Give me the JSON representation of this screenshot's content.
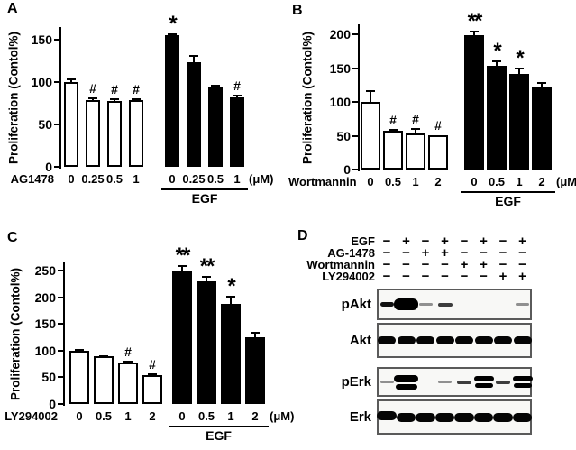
{
  "panel_letters": {
    "A": "A",
    "B": "B",
    "C": "C",
    "D": "D"
  },
  "accent_colors": {
    "bar_fill_dark": "#000000",
    "bar_fill_light": "#ffffff",
    "blot_border": "#5a5a5a"
  },
  "chart_data": [
    {
      "panel": "A",
      "type": "bar",
      "title": "",
      "ylabel": "Proliferation (Contol%)",
      "xlabel": "",
      "drug_label": "AG1478",
      "unit_label": "(μM)",
      "group2_underline_label": "EGF",
      "categories": [
        "0",
        "0.25",
        "0.5",
        "1"
      ],
      "yticks": [
        0,
        50,
        100,
        150
      ],
      "ylim": [
        0,
        165
      ],
      "grid": false,
      "legend": "none",
      "series": [
        {
          "name": "AG1478 alone",
          "fill": "white",
          "values": [
            100,
            79,
            78,
            79
          ],
          "errors": [
            3,
            2,
            2,
            1
          ],
          "annotations": [
            "",
            "#",
            "#",
            "#"
          ]
        },
        {
          "name": "AG1478 + EGF",
          "fill": "black",
          "values": [
            155,
            123,
            95,
            82
          ],
          "errors": [
            2,
            8,
            1,
            2
          ],
          "annotations": [
            "*",
            "",
            "",
            "#"
          ]
        }
      ]
    },
    {
      "panel": "B",
      "type": "bar",
      "title": "",
      "ylabel": "Proliferation (Contol%)",
      "xlabel": "",
      "drug_label": "Wortmannin",
      "unit_label": "(μM)",
      "group2_underline_label": "EGF",
      "categories": [
        "0",
        "0.5",
        "1",
        "2"
      ],
      "yticks": [
        0,
        50,
        100,
        150,
        200
      ],
      "ylim": [
        0,
        215
      ],
      "grid": false,
      "legend": "none",
      "series": [
        {
          "name": "Wortmannin alone",
          "fill": "white",
          "values": [
            100,
            57,
            54,
            51
          ],
          "errors": [
            16,
            2,
            6,
            0
          ],
          "annotations": [
            "",
            "#",
            "#",
            "#"
          ]
        },
        {
          "name": "Wortmannin + EGF",
          "fill": "black",
          "values": [
            199,
            153,
            141,
            122
          ],
          "errors": [
            5,
            7,
            8,
            6
          ],
          "annotations": [
            "**",
            "*",
            "*",
            ""
          ]
        }
      ]
    },
    {
      "panel": "C",
      "type": "bar",
      "title": "",
      "ylabel": "Proliferation (Contol%)",
      "xlabel": "",
      "drug_label": "LY294002",
      "unit_label": "(μM)",
      "group2_underline_label": "EGF",
      "categories": [
        "0",
        "0.5",
        "1",
        "2"
      ],
      "yticks": [
        0,
        50,
        100,
        150,
        200,
        250
      ],
      "ylim": [
        0,
        265
      ],
      "grid": false,
      "legend": "none",
      "series": [
        {
          "name": "LY294002 alone",
          "fill": "white",
          "values": [
            100,
            89,
            78,
            54
          ],
          "errors": [
            2,
            1,
            2,
            1
          ],
          "annotations": [
            "",
            "",
            "#",
            "#"
          ]
        },
        {
          "name": "LY294002 + EGF",
          "fill": "black",
          "values": [
            250,
            229,
            188,
            125
          ],
          "errors": [
            8,
            9,
            13,
            8
          ],
          "annotations": [
            "**",
            "**",
            "*",
            ""
          ]
        }
      ]
    }
  ],
  "western_blot": {
    "panel": "D",
    "lanes": 8,
    "treatments": [
      {
        "label": "EGF",
        "signs": [
          "−",
          "+",
          "−",
          "+",
          "−",
          "+",
          "−",
          "+"
        ]
      },
      {
        "label": "AG-1478",
        "signs": [
          "−",
          "−",
          "+",
          "+",
          "−",
          "−",
          "−",
          "−"
        ]
      },
      {
        "label": "Wortmannin",
        "signs": [
          "−",
          "−",
          "−",
          "−",
          "+",
          "+",
          "−",
          "−"
        ]
      },
      {
        "label": "LY294002",
        "signs": [
          "−",
          "−",
          "−",
          "−",
          "−",
          "−",
          "+",
          "+"
        ]
      }
    ],
    "blots": [
      {
        "label": "pAkt",
        "lanes": [
          "medium",
          "strong-big",
          "faint",
          "light",
          "none",
          "none",
          "none",
          "faint"
        ]
      },
      {
        "label": "Akt",
        "lanes": [
          "strong",
          "strong",
          "strong",
          "strong",
          "strong",
          "strong",
          "strong",
          "strong"
        ]
      },
      {
        "label": "pErk",
        "lanes": [
          "faint",
          "strong-double-big",
          "none",
          "faint",
          "light",
          "strong-double",
          "light",
          "strong-double"
        ]
      },
      {
        "label": "Erk",
        "lanes": [
          "strong-wide",
          "strong-wide",
          "strong-wide",
          "strong-wide",
          "strong-wide",
          "strong-wide",
          "strong-wide",
          "strong-wide"
        ]
      }
    ]
  }
}
